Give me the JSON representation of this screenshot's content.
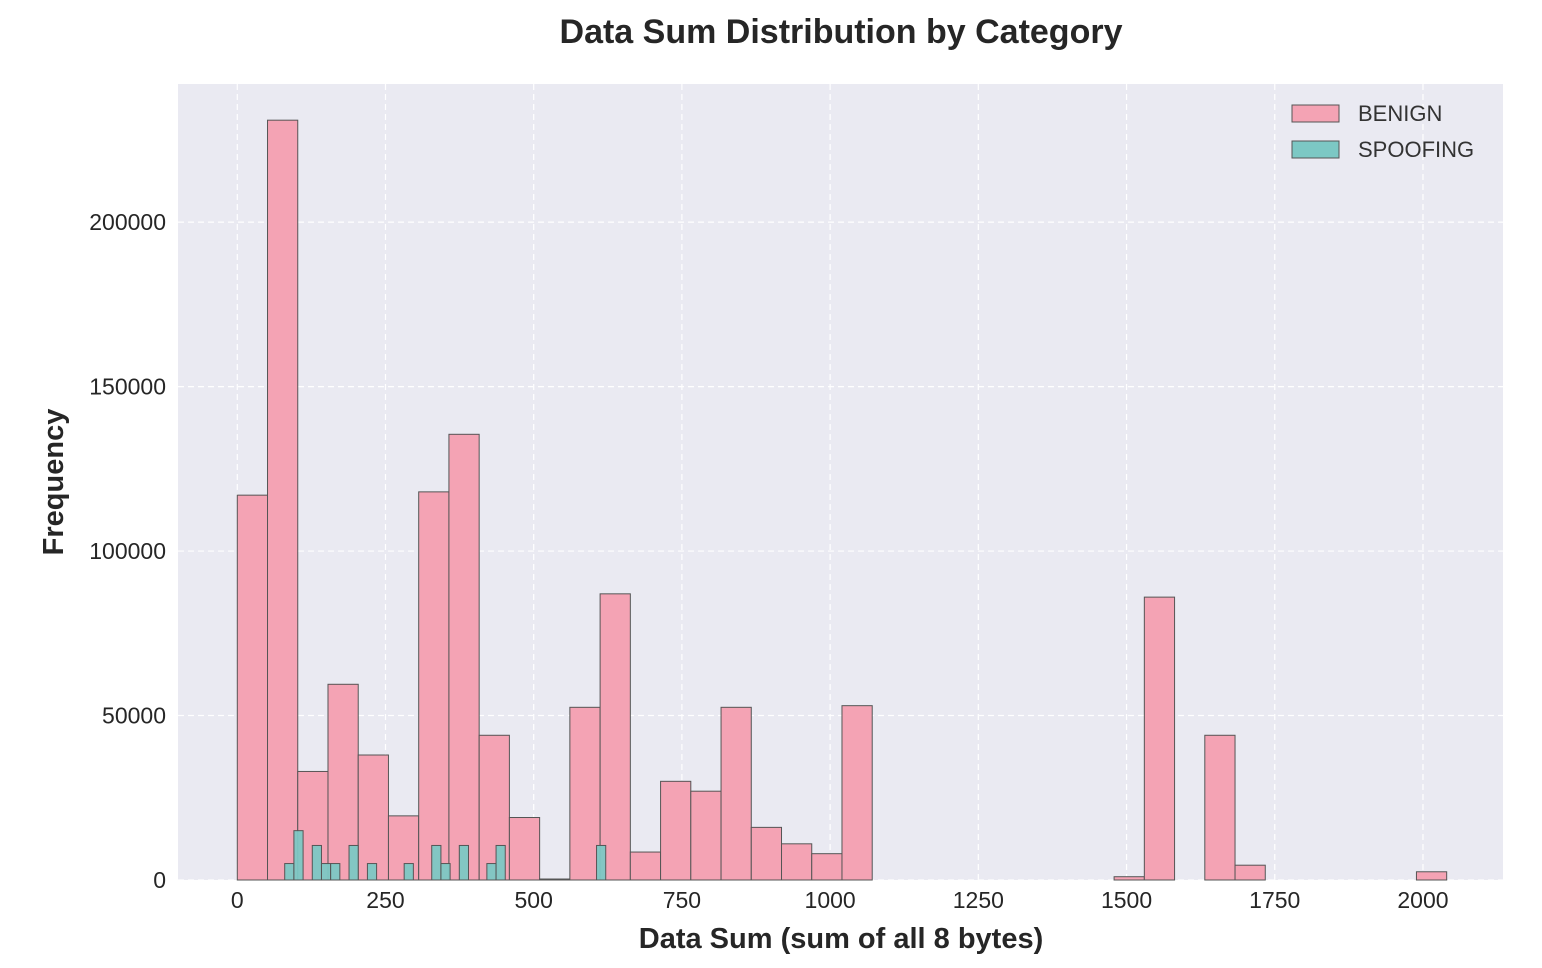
{
  "chart_data": {
    "type": "bar",
    "title": "Data Sum Distribution by Category",
    "xlabel": "Data Sum (sum of all 8 bytes)",
    "ylabel": "Frequency",
    "xlim": [
      -100,
      2135
    ],
    "ylim": [
      0,
      242000
    ],
    "xticks": [
      0,
      250,
      500,
      750,
      1000,
      1250,
      1500,
      1750,
      2000
    ],
    "yticks": [
      0,
      50000,
      100000,
      150000,
      200000
    ],
    "grid": true,
    "legend_position": "top-right",
    "series": [
      {
        "name": "BENIGN",
        "color": "#f4a3b4",
        "edge_color": "#555555",
        "bin_width": 51,
        "bins": [
          {
            "x": 0,
            "value": 117000
          },
          {
            "x": 51,
            "value": 231000
          },
          {
            "x": 102,
            "value": 33000
          },
          {
            "x": 153,
            "value": 59500
          },
          {
            "x": 204,
            "value": 38000
          },
          {
            "x": 255,
            "value": 19500
          },
          {
            "x": 306,
            "value": 118000
          },
          {
            "x": 357,
            "value": 135500
          },
          {
            "x": 408,
            "value": 44000
          },
          {
            "x": 459,
            "value": 19000
          },
          {
            "x": 510,
            "value": 300
          },
          {
            "x": 561,
            "value": 52500
          },
          {
            "x": 612,
            "value": 87000
          },
          {
            "x": 663,
            "value": 8500
          },
          {
            "x": 714,
            "value": 30000
          },
          {
            "x": 765,
            "value": 27000
          },
          {
            "x": 816,
            "value": 52500
          },
          {
            "x": 867,
            "value": 16000
          },
          {
            "x": 918,
            "value": 11000
          },
          {
            "x": 969,
            "value": 8000
          },
          {
            "x": 1020,
            "value": 53000
          },
          {
            "x": 1479,
            "value": 1000
          },
          {
            "x": 1530,
            "value": 86000
          },
          {
            "x": 1632,
            "value": 44000
          },
          {
            "x": 1683,
            "value": 4500
          },
          {
            "x": 1989,
            "value": 2500
          }
        ]
      },
      {
        "name": "SPOOFING",
        "color": "#7cc8c4",
        "edge_color": "#555555",
        "bin_width": 15.5,
        "bins": [
          {
            "x": 80,
            "value": 5000
          },
          {
            "x": 95.5,
            "value": 15000
          },
          {
            "x": 126.5,
            "value": 10500
          },
          {
            "x": 142,
            "value": 5000
          },
          {
            "x": 157.5,
            "value": 5000
          },
          {
            "x": 188.5,
            "value": 10500
          },
          {
            "x": 219.5,
            "value": 5000
          },
          {
            "x": 281.5,
            "value": 5000
          },
          {
            "x": 328,
            "value": 10500
          },
          {
            "x": 343.5,
            "value": 5000
          },
          {
            "x": 374.5,
            "value": 10500
          },
          {
            "x": 421,
            "value": 5000
          },
          {
            "x": 436.5,
            "value": 10500
          },
          {
            "x": 606,
            "value": 10500
          }
        ]
      }
    ]
  }
}
